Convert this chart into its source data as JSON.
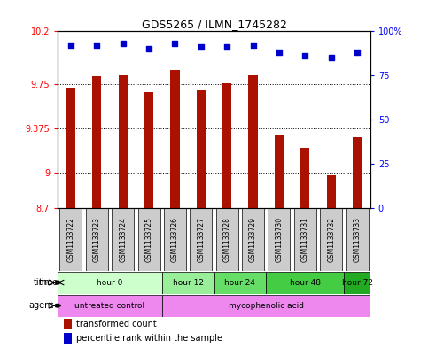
{
  "title": "GDS5265 / ILMN_1745282",
  "samples": [
    "GSM1133722",
    "GSM1133723",
    "GSM1133724",
    "GSM1133725",
    "GSM1133726",
    "GSM1133727",
    "GSM1133728",
    "GSM1133729",
    "GSM1133730",
    "GSM1133731",
    "GSM1133732",
    "GSM1133733"
  ],
  "bar_values": [
    9.72,
    9.82,
    9.83,
    9.68,
    9.87,
    9.7,
    9.76,
    9.83,
    9.32,
    9.21,
    8.98,
    9.3
  ],
  "percentile_values": [
    92,
    92,
    93,
    90,
    93,
    91,
    91,
    92,
    88,
    86,
    85,
    88
  ],
  "ylim_left": [
    8.7,
    10.2
  ],
  "ylim_right": [
    0,
    100
  ],
  "yticks_left": [
    8.7,
    9.0,
    9.375,
    9.75,
    10.2
  ],
  "ytick_labels_left": [
    "8.7",
    "9",
    "9.375",
    "9.75",
    "10.2"
  ],
  "yticks_right": [
    0,
    25,
    50,
    75,
    100
  ],
  "ytick_labels_right": [
    "0",
    "25",
    "50",
    "75",
    "100%"
  ],
  "hline_values": [
    9.0,
    9.375,
    9.75
  ],
  "bar_color": "#AA1100",
  "percentile_color": "#0000CC",
  "time_groups": [
    {
      "label": "hour 0",
      "start": 0,
      "end": 3,
      "color": "#CCFFCC"
    },
    {
      "label": "hour 12",
      "start": 4,
      "end": 5,
      "color": "#99EE99"
    },
    {
      "label": "hour 24",
      "start": 6,
      "end": 7,
      "color": "#66DD66"
    },
    {
      "label": "hour 48",
      "start": 8,
      "end": 10,
      "color": "#44CC44"
    },
    {
      "label": "hour 72",
      "start": 11,
      "end": 11,
      "color": "#22AA22"
    }
  ],
  "agent_groups": [
    {
      "label": "untreated control",
      "start": 0,
      "end": 3,
      "color": "#EE88EE"
    },
    {
      "label": "mycophenolic acid",
      "start": 4,
      "end": 11,
      "color": "#EE88EE"
    }
  ],
  "legend_bar_label": "transformed count",
  "legend_pct_label": "percentile rank within the sample",
  "bg_color": "#FFFFFF",
  "bar_width": 0.35
}
